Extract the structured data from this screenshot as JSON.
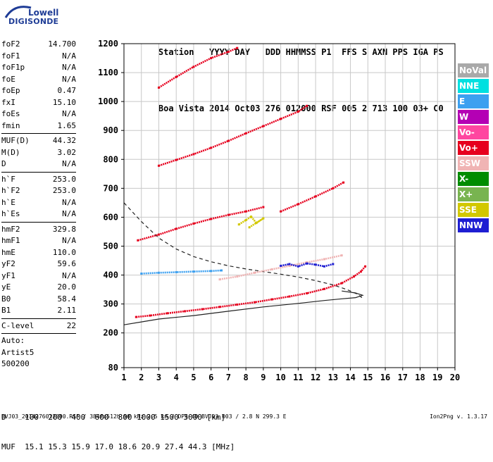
{
  "logo": {
    "line1": "Lowell",
    "line2": "DIGISONDE"
  },
  "header": {
    "labels": [
      "Station",
      "YYYY",
      "DAY",
      "DDD",
      "HHMMSS",
      "P1",
      "FFS",
      "S",
      "AXN",
      "PPS",
      "IGA",
      "PS"
    ],
    "values": [
      "Boa Vista",
      "2014",
      "Oct03",
      "276",
      "012000",
      "RSF",
      "005",
      "2",
      "713",
      "100",
      "03+",
      "C0"
    ]
  },
  "params": {
    "group1": [
      {
        "k": "foF2",
        "v": "14.700"
      },
      {
        "k": "foF1",
        "v": "N/A"
      },
      {
        "k": "foF1p",
        "v": "N/A"
      },
      {
        "k": "foE",
        "v": "N/A"
      },
      {
        "k": "foEp",
        "v": "0.47"
      },
      {
        "k": "fxI",
        "v": "15.10"
      },
      {
        "k": "foEs",
        "v": "N/A"
      },
      {
        "k": "fmin",
        "v": "1.65"
      }
    ],
    "group2": [
      {
        "k": "MUF(D)",
        "v": "44.32"
      },
      {
        "k": "M(D)",
        "v": "3.02"
      },
      {
        "k": "D",
        "v": "N/A"
      }
    ],
    "group3": [
      {
        "k": "h`F",
        "v": "253.0"
      },
      {
        "k": "h`F2",
        "v": "253.0"
      },
      {
        "k": "h`E",
        "v": "N/A"
      },
      {
        "k": "h`Es",
        "v": "N/A"
      }
    ],
    "group4": [
      {
        "k": "hmF2",
        "v": "329.8"
      },
      {
        "k": "hmF1",
        "v": "N/A"
      },
      {
        "k": "hmE",
        "v": "110.0"
      },
      {
        "k": "yF2",
        "v": "59.6"
      },
      {
        "k": "yF1",
        "v": "N/A"
      },
      {
        "k": "yE",
        "v": "20.0"
      },
      {
        "k": "B0",
        "v": "58.4"
      },
      {
        "k": "B1",
        "v": "2.11"
      }
    ],
    "clevel": {
      "k": "C-level",
      "v": "22"
    },
    "auto": [
      "Auto:",
      "Artist5",
      "500200"
    ]
  },
  "legend": [
    {
      "label": "NoVal",
      "color": "#a9a9a9"
    },
    {
      "label": "NNE",
      "color": "#00e0e0"
    },
    {
      "label": "E",
      "color": "#3ca0f0"
    },
    {
      "label": "W",
      "color": "#b400b4"
    },
    {
      "label": "Vo-",
      "color": "#ff46a0"
    },
    {
      "label": "Vo+",
      "color": "#e6001e"
    },
    {
      "label": "SSW",
      "color": "#f0b4b4"
    },
    {
      "label": "X-",
      "color": "#008c00"
    },
    {
      "label": "X+",
      "color": "#78b450"
    },
    {
      "label": "SSE",
      "color": "#d2c800"
    },
    {
      "label": "NNW",
      "color": "#1e1ed2"
    }
  ],
  "footer": {
    "line1_label": "D",
    "line1": [
      "100",
      "200",
      "400",
      "600",
      "800",
      "1000",
      "1500",
      "3000",
      "[km]"
    ],
    "line2_label": "MUF",
    "line2": [
      "15.1",
      "15.3",
      "15.9",
      "17.0",
      "18.6",
      "20.9",
      "27.4",
      "44.3",
      "[MHz]"
    ],
    "file": "BVJ03_2014276012000.RSF / 384fx512h 50 kHz 2.5 km / DPS-4D BVJ03 003 / 2.8 N 299.3 E",
    "version": "Ion2Png v. 1.3.17"
  },
  "chart_data": {
    "type": "scatter",
    "xlim": [
      1,
      20
    ],
    "ylim": [
      80,
      1200
    ],
    "x_ticks": [
      1,
      2,
      3,
      4,
      5,
      6,
      7,
      8,
      9,
      10,
      11,
      12,
      13,
      14,
      15,
      16,
      17,
      18,
      19,
      20
    ],
    "y_ticks": [
      80,
      200,
      300,
      400,
      500,
      600,
      700,
      800,
      900,
      1000,
      1100,
      1200
    ],
    "grid": true,
    "legend_position": "right",
    "series": [
      {
        "color": "#e6001e",
        "points": [
          [
            1.7,
            255
          ],
          [
            2.5,
            260
          ],
          [
            3.5,
            268
          ],
          [
            4.5,
            275
          ],
          [
            5.5,
            282
          ],
          [
            6.5,
            290
          ],
          [
            7.5,
            298
          ],
          [
            8.5,
            306
          ],
          [
            9.5,
            316
          ],
          [
            10.5,
            326
          ],
          [
            11.5,
            337
          ],
          [
            12.5,
            352
          ],
          [
            13.5,
            372
          ],
          [
            14.2,
            395
          ],
          [
            14.6,
            412
          ],
          [
            14.85,
            430
          ]
        ]
      },
      {
        "color": "#e6001e",
        "points": [
          [
            1.8,
            520
          ],
          [
            3,
            540
          ],
          [
            4,
            560
          ],
          [
            5,
            578
          ],
          [
            6,
            594
          ],
          [
            7,
            608
          ],
          [
            8,
            620
          ],
          [
            9,
            635
          ]
        ]
      },
      {
        "color": "#e6001e",
        "points": [
          [
            10,
            620
          ],
          [
            11,
            645
          ],
          [
            12,
            672
          ],
          [
            13,
            700
          ],
          [
            13.6,
            720
          ]
        ]
      },
      {
        "color": "#e6001e",
        "points": [
          [
            3,
            778
          ],
          [
            4,
            798
          ],
          [
            5,
            818
          ],
          [
            6,
            840
          ],
          [
            7,
            864
          ],
          [
            8,
            890
          ],
          [
            9,
            915
          ],
          [
            10,
            940
          ],
          [
            11,
            965
          ],
          [
            11.5,
            985
          ]
        ]
      },
      {
        "color": "#e6001e",
        "points": [
          [
            3,
            1048
          ],
          [
            4,
            1085
          ],
          [
            5,
            1120
          ],
          [
            6,
            1150
          ],
          [
            7,
            1172
          ],
          [
            7.5,
            1185
          ]
        ]
      },
      {
        "color": "#f0b4b4",
        "points": [
          [
            6.5,
            385
          ],
          [
            7.5,
            395
          ],
          [
            8.5,
            408
          ],
          [
            9.5,
            420
          ],
          [
            10.5,
            432
          ],
          [
            11.5,
            444
          ],
          [
            12.5,
            455
          ],
          [
            13.5,
            468
          ]
        ]
      },
      {
        "color": "#1e1ed2",
        "points": [
          [
            10,
            432
          ],
          [
            10.5,
            438
          ],
          [
            11,
            430
          ],
          [
            11.5,
            440
          ],
          [
            12,
            436
          ],
          [
            12.5,
            430
          ],
          [
            13,
            438
          ]
        ]
      },
      {
        "color": "#d2c800",
        "points": [
          [
            7.6,
            575
          ],
          [
            8,
            590
          ],
          [
            8.3,
            602
          ],
          [
            8.6,
            580
          ],
          [
            9,
            596
          ],
          [
            8.2,
            565
          ]
        ]
      },
      {
        "color": "#3ca0f0",
        "points": [
          [
            2,
            405
          ],
          [
            3,
            408
          ],
          [
            4,
            410
          ],
          [
            5,
            412
          ],
          [
            6,
            414
          ],
          [
            6.6,
            416
          ]
        ]
      }
    ],
    "profile_curve": [
      [
        1,
        228
      ],
      [
        2,
        238
      ],
      [
        3,
        248
      ],
      [
        5,
        260
      ],
      [
        7,
        275
      ],
      [
        9,
        290
      ],
      [
        11,
        302
      ],
      [
        12.5,
        312
      ],
      [
        13.5,
        318
      ],
      [
        14.3,
        322
      ],
      [
        14.7,
        330
      ],
      [
        14.3,
        338
      ],
      [
        13.5,
        345
      ]
    ],
    "dashed_curve": [
      [
        1,
        650
      ],
      [
        2,
        585
      ],
      [
        3,
        528
      ],
      [
        4,
        490
      ],
      [
        5,
        464
      ],
      [
        6,
        446
      ],
      [
        7,
        432
      ],
      [
        8,
        421
      ],
      [
        9,
        412
      ],
      [
        10,
        403
      ],
      [
        11,
        393
      ],
      [
        12,
        381
      ],
      [
        13,
        366
      ],
      [
        13.8,
        350
      ],
      [
        14.4,
        334
      ],
      [
        14.7,
        320
      ]
    ]
  }
}
